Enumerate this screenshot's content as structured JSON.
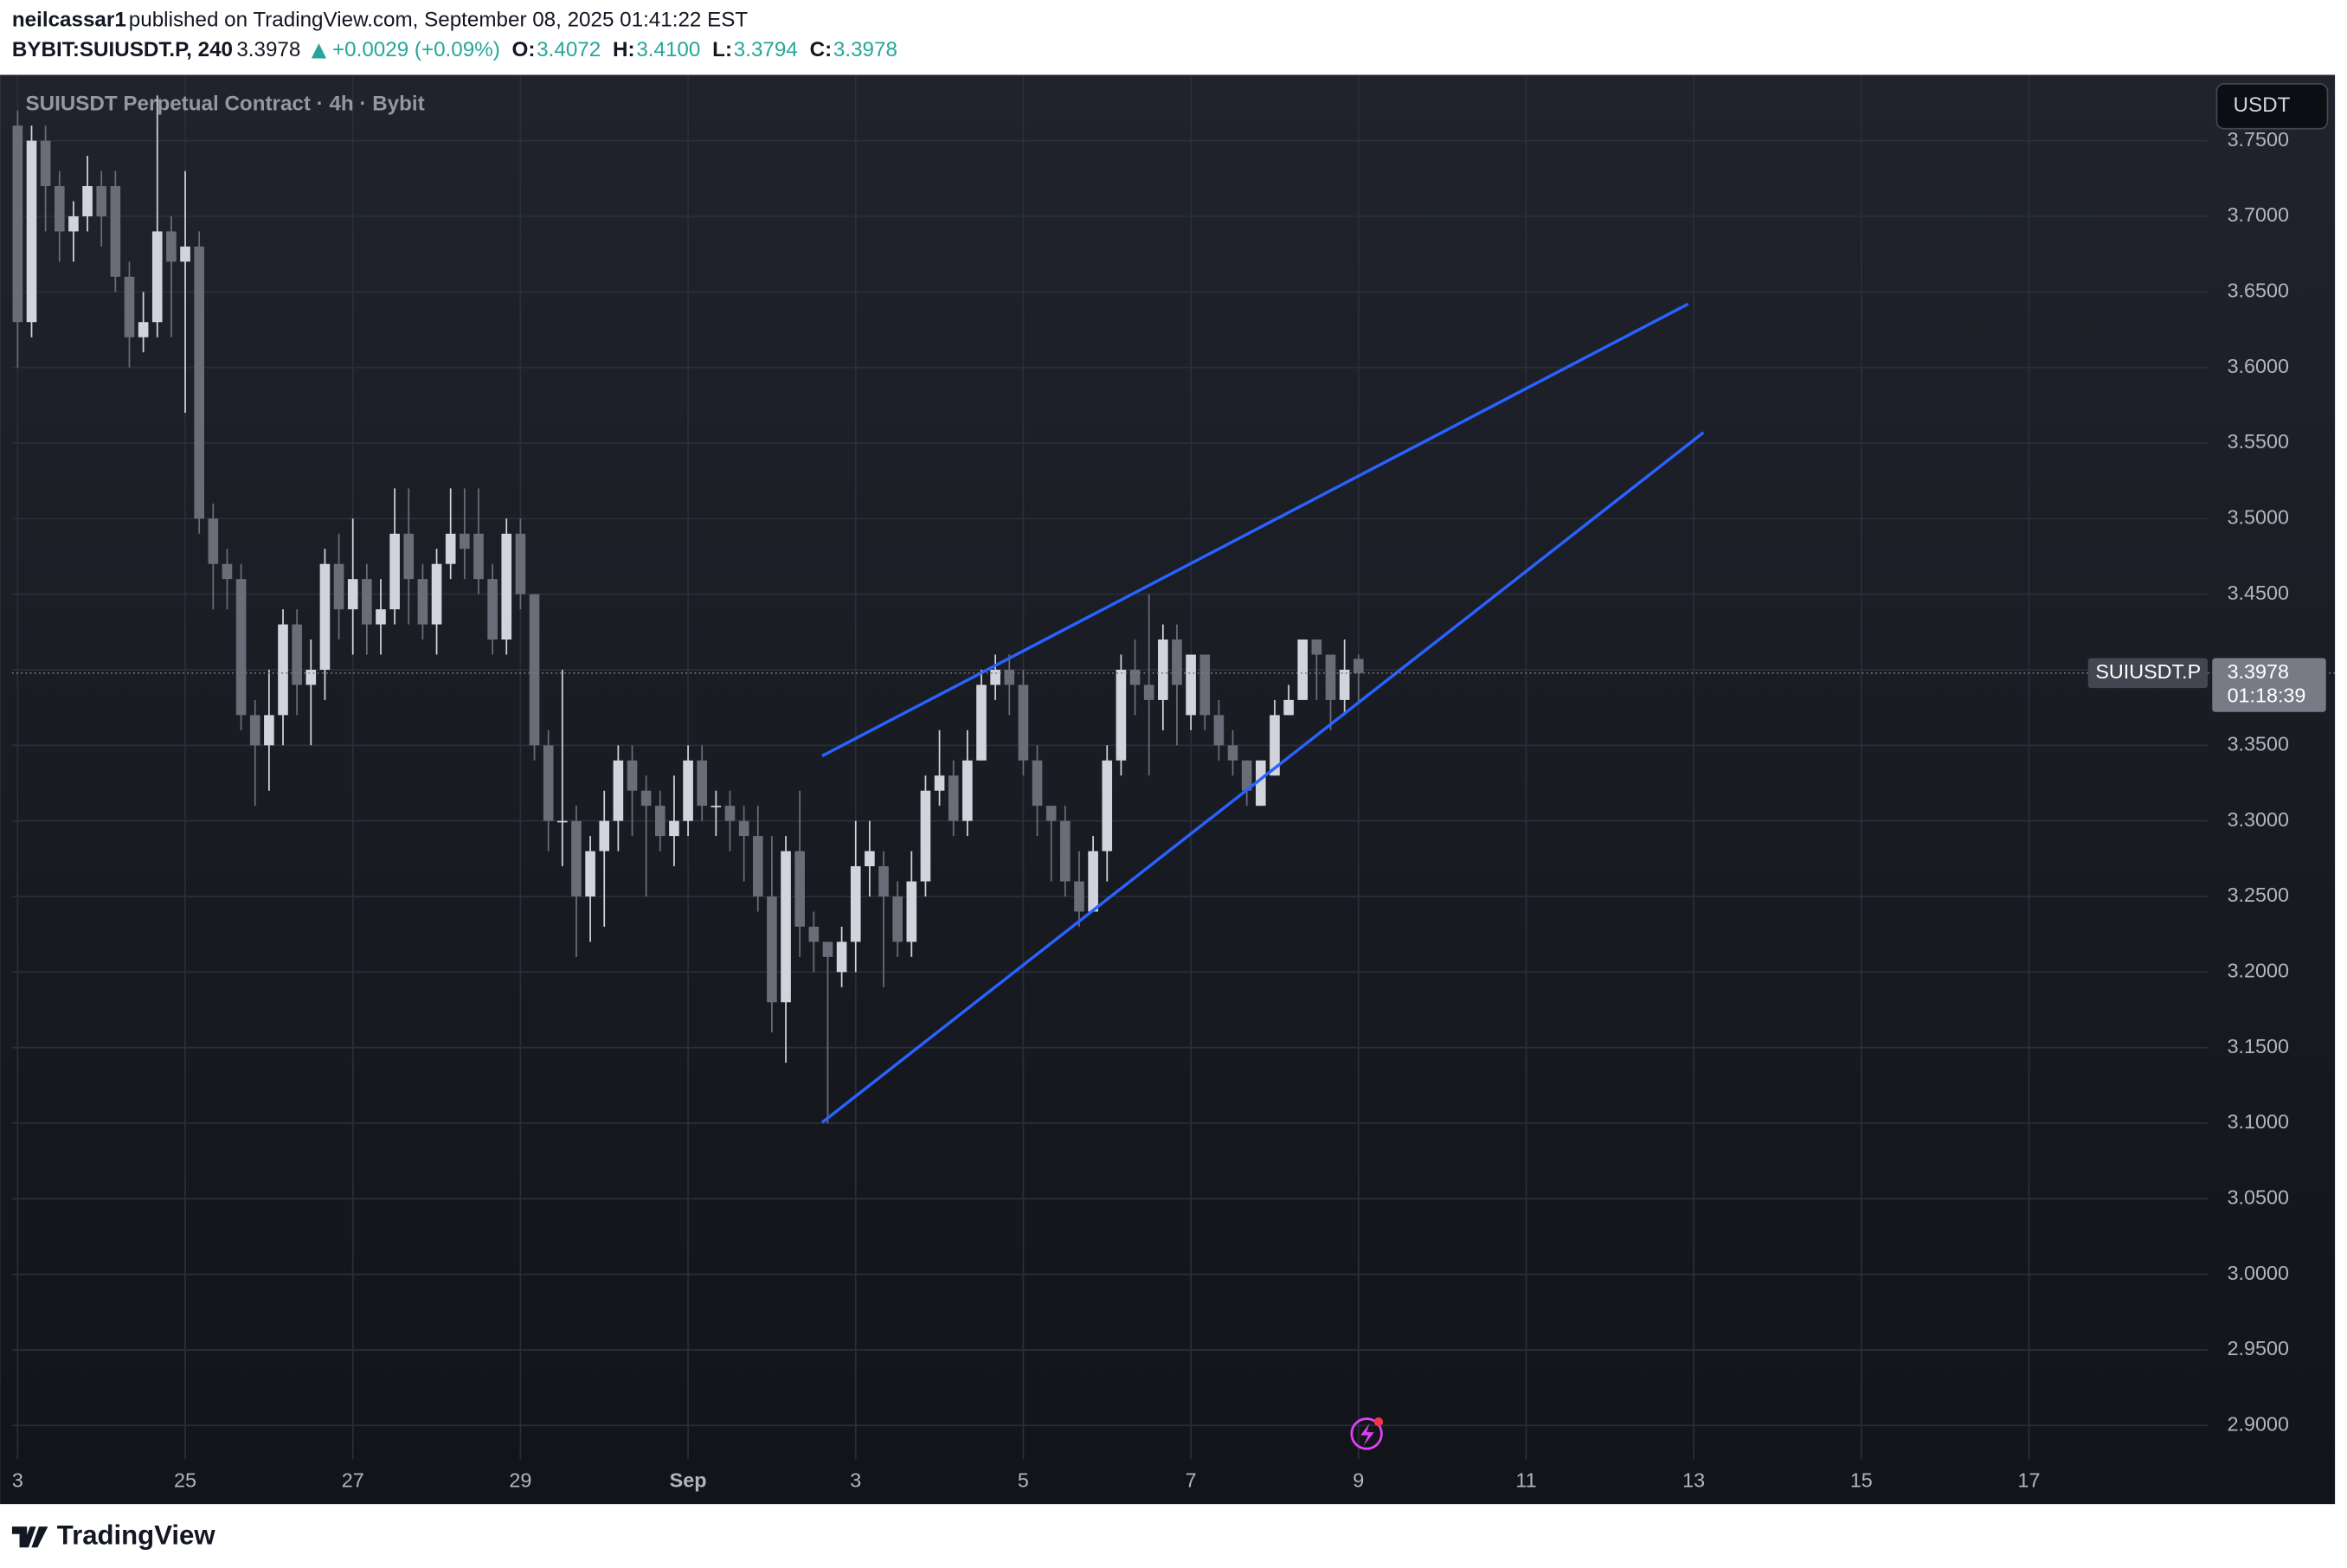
{
  "header": {
    "author": "neilcassar1",
    "published": "published on TradingView.com, September 08, 2025 01:41:22 EST",
    "symbol": "BYBIT:SUIUSDT.P, 240",
    "last": "3.3978",
    "change": "+0.0029 (+0.09%)",
    "ohlc": [
      {
        "label": "O:",
        "value": "3.4072"
      },
      {
        "label": "H:",
        "value": "3.4100"
      },
      {
        "label": "L:",
        "value": "3.3794"
      },
      {
        "label": "C:",
        "value": "3.3978"
      }
    ]
  },
  "footer": {
    "brand": "TradingView"
  },
  "chart_data": {
    "type": "candlestick",
    "title": "SUIUSDT Perpetual Contract · 4h · Bybit",
    "currency": "USDT",
    "symbol_tag": "SUIUSDT.P",
    "countdown": "01:18:39",
    "last_price": 3.3978,
    "up_color": "#d1d4dc",
    "down_color": "#6a6d78",
    "grid": true,
    "open": [
      3.76,
      3.63,
      3.75,
      3.72,
      3.69,
      3.7,
      3.72,
      3.72,
      3.66,
      3.62,
      3.63,
      3.69,
      3.67,
      3.68,
      3.5,
      3.47,
      3.46,
      3.37,
      3.35,
      3.37,
      3.43,
      3.39,
      3.4,
      3.47,
      3.44,
      3.46,
      3.43,
      3.44,
      3.49,
      3.46,
      3.43,
      3.47,
      3.49,
      3.49,
      3.46,
      3.42,
      3.49,
      3.45,
      3.35,
      3.3,
      3.3,
      3.25,
      3.28,
      3.3,
      3.34,
      3.32,
      3.31,
      3.29,
      3.3,
      3.34,
      3.31,
      3.31,
      3.3,
      3.29,
      3.25,
      3.18,
      3.28,
      3.23,
      3.22,
      3.2,
      3.22,
      3.27,
      3.27,
      3.25,
      3.22,
      3.26,
      3.32,
      3.33,
      3.3,
      3.34,
      3.39,
      3.4,
      3.39,
      3.34,
      3.31,
      3.3,
      3.26,
      3.24,
      3.28,
      3.34,
      3.4,
      3.39,
      3.38,
      3.42,
      3.37,
      3.41,
      3.37,
      3.35,
      3.34,
      3.31,
      3.33,
      3.37,
      3.38,
      3.42,
      3.41,
      3.38,
      3.4072
    ],
    "high": [
      3.77,
      3.76,
      3.76,
      3.73,
      3.71,
      3.74,
      3.73,
      3.73,
      3.67,
      3.65,
      3.78,
      3.7,
      3.73,
      3.69,
      3.51,
      3.48,
      3.47,
      3.38,
      3.4,
      3.44,
      3.44,
      3.42,
      3.48,
      3.49,
      3.5,
      3.47,
      3.46,
      3.52,
      3.52,
      3.47,
      3.48,
      3.52,
      3.52,
      3.52,
      3.47,
      3.5,
      3.5,
      3.45,
      3.36,
      3.4,
      3.31,
      3.29,
      3.32,
      3.35,
      3.35,
      3.33,
      3.32,
      3.33,
      3.35,
      3.35,
      3.32,
      3.32,
      3.31,
      3.31,
      3.29,
      3.29,
      3.32,
      3.24,
      3.22,
      3.23,
      3.3,
      3.3,
      3.28,
      3.26,
      3.28,
      3.33,
      3.36,
      3.34,
      3.36,
      3.4,
      3.41,
      3.41,
      3.4,
      3.35,
      3.31,
      3.31,
      3.28,
      3.29,
      3.35,
      3.41,
      3.42,
      3.45,
      3.43,
      3.43,
      3.41,
      3.41,
      3.38,
      3.36,
      3.34,
      3.34,
      3.38,
      3.39,
      3.42,
      3.42,
      3.41,
      3.42,
      3.41
    ],
    "low": [
      3.6,
      3.62,
      3.69,
      3.67,
      3.67,
      3.69,
      3.68,
      3.65,
      3.6,
      3.61,
      3.62,
      3.62,
      3.57,
      3.49,
      3.44,
      3.44,
      3.36,
      3.31,
      3.32,
      3.35,
      3.37,
      3.35,
      3.38,
      3.42,
      3.41,
      3.41,
      3.41,
      3.43,
      3.43,
      3.42,
      3.41,
      3.46,
      3.46,
      3.45,
      3.41,
      3.41,
      3.44,
      3.34,
      3.28,
      3.27,
      3.21,
      3.22,
      3.23,
      3.28,
      3.29,
      3.25,
      3.28,
      3.27,
      3.29,
      3.3,
      3.29,
      3.28,
      3.26,
      3.24,
      3.16,
      3.14,
      3.21,
      3.2,
      3.1,
      3.19,
      3.2,
      3.25,
      3.19,
      3.21,
      3.21,
      3.25,
      3.31,
      3.29,
      3.29,
      3.34,
      3.38,
      3.37,
      3.33,
      3.29,
      3.26,
      3.25,
      3.23,
      3.24,
      3.26,
      3.33,
      3.37,
      3.33,
      3.36,
      3.35,
      3.36,
      3.36,
      3.34,
      3.33,
      3.31,
      3.31,
      3.33,
      3.37,
      3.38,
      3.38,
      3.36,
      3.37,
      3.3794
    ],
    "close": [
      3.63,
      3.75,
      3.72,
      3.69,
      3.7,
      3.72,
      3.7,
      3.66,
      3.62,
      3.63,
      3.69,
      3.67,
      3.68,
      3.5,
      3.47,
      3.46,
      3.37,
      3.35,
      3.37,
      3.43,
      3.39,
      3.4,
      3.47,
      3.44,
      3.46,
      3.43,
      3.44,
      3.49,
      3.46,
      3.43,
      3.47,
      3.49,
      3.48,
      3.46,
      3.42,
      3.49,
      3.45,
      3.35,
      3.3,
      3.3,
      3.25,
      3.28,
      3.3,
      3.34,
      3.32,
      3.31,
      3.29,
      3.3,
      3.34,
      3.31,
      3.31,
      3.3,
      3.29,
      3.25,
      3.18,
      3.28,
      3.23,
      3.22,
      3.21,
      3.22,
      3.27,
      3.28,
      3.25,
      3.22,
      3.26,
      3.32,
      3.33,
      3.3,
      3.34,
      3.39,
      3.4,
      3.39,
      3.34,
      3.31,
      3.3,
      3.26,
      3.24,
      3.28,
      3.34,
      3.4,
      3.39,
      3.38,
      3.42,
      3.39,
      3.41,
      3.37,
      3.35,
      3.34,
      3.32,
      3.34,
      3.37,
      3.38,
      3.42,
      3.41,
      3.38,
      3.4,
      3.3978
    ],
    "trendlines": [
      {
        "color": "#2962ff",
        "x": [
          57.6,
          119.6
        ],
        "y": [
          3.343,
          3.642
        ]
      },
      {
        "color": "#2962ff",
        "x": [
          57.6,
          120.7
        ],
        "y": [
          3.1005,
          3.557
        ]
      }
    ],
    "xlim": [
      -0.4,
      156.8
    ],
    "xticks": [
      {
        "value": 0,
        "label": "3"
      },
      {
        "value": 12,
        "label": "25"
      },
      {
        "value": 24,
        "label": "27"
      },
      {
        "value": 36,
        "label": "29"
      },
      {
        "value": 48,
        "label": "Sep"
      },
      {
        "value": 60,
        "label": "3"
      },
      {
        "value": 72,
        "label": "5"
      },
      {
        "value": 84,
        "label": "7"
      },
      {
        "value": 96,
        "label": "9"
      },
      {
        "value": 108,
        "label": "11"
      },
      {
        "value": 120,
        "label": "13"
      },
      {
        "value": 132,
        "label": "15"
      },
      {
        "value": 144,
        "label": "17"
      }
    ],
    "ylim": [
      2.848,
      3.7936
    ],
    "yticks": [
      {
        "value": 2.9,
        "label": "2.9000"
      },
      {
        "value": 2.95,
        "label": "2.9500"
      },
      {
        "value": 3.0,
        "label": "3.0000"
      },
      {
        "value": 3.05,
        "label": "3.0500"
      },
      {
        "value": 3.1,
        "label": "3.1000"
      },
      {
        "value": 3.15,
        "label": "3.1500"
      },
      {
        "value": 3.2,
        "label": "3.2000"
      },
      {
        "value": 3.25,
        "label": "3.2500"
      },
      {
        "value": 3.3,
        "label": "3.3000"
      },
      {
        "value": 3.35,
        "label": "3.3500"
      },
      {
        "value": 3.4,
        "label": "3.4000"
      },
      {
        "value": 3.45,
        "label": "3.4500"
      },
      {
        "value": 3.5,
        "label": "3.5000"
      },
      {
        "value": 3.55,
        "label": "3.5500"
      },
      {
        "value": 3.6,
        "label": "3.6000"
      },
      {
        "value": 3.65,
        "label": "3.6500"
      },
      {
        "value": 3.7,
        "label": "3.7000"
      },
      {
        "value": 3.75,
        "label": "3.7500"
      }
    ]
  }
}
